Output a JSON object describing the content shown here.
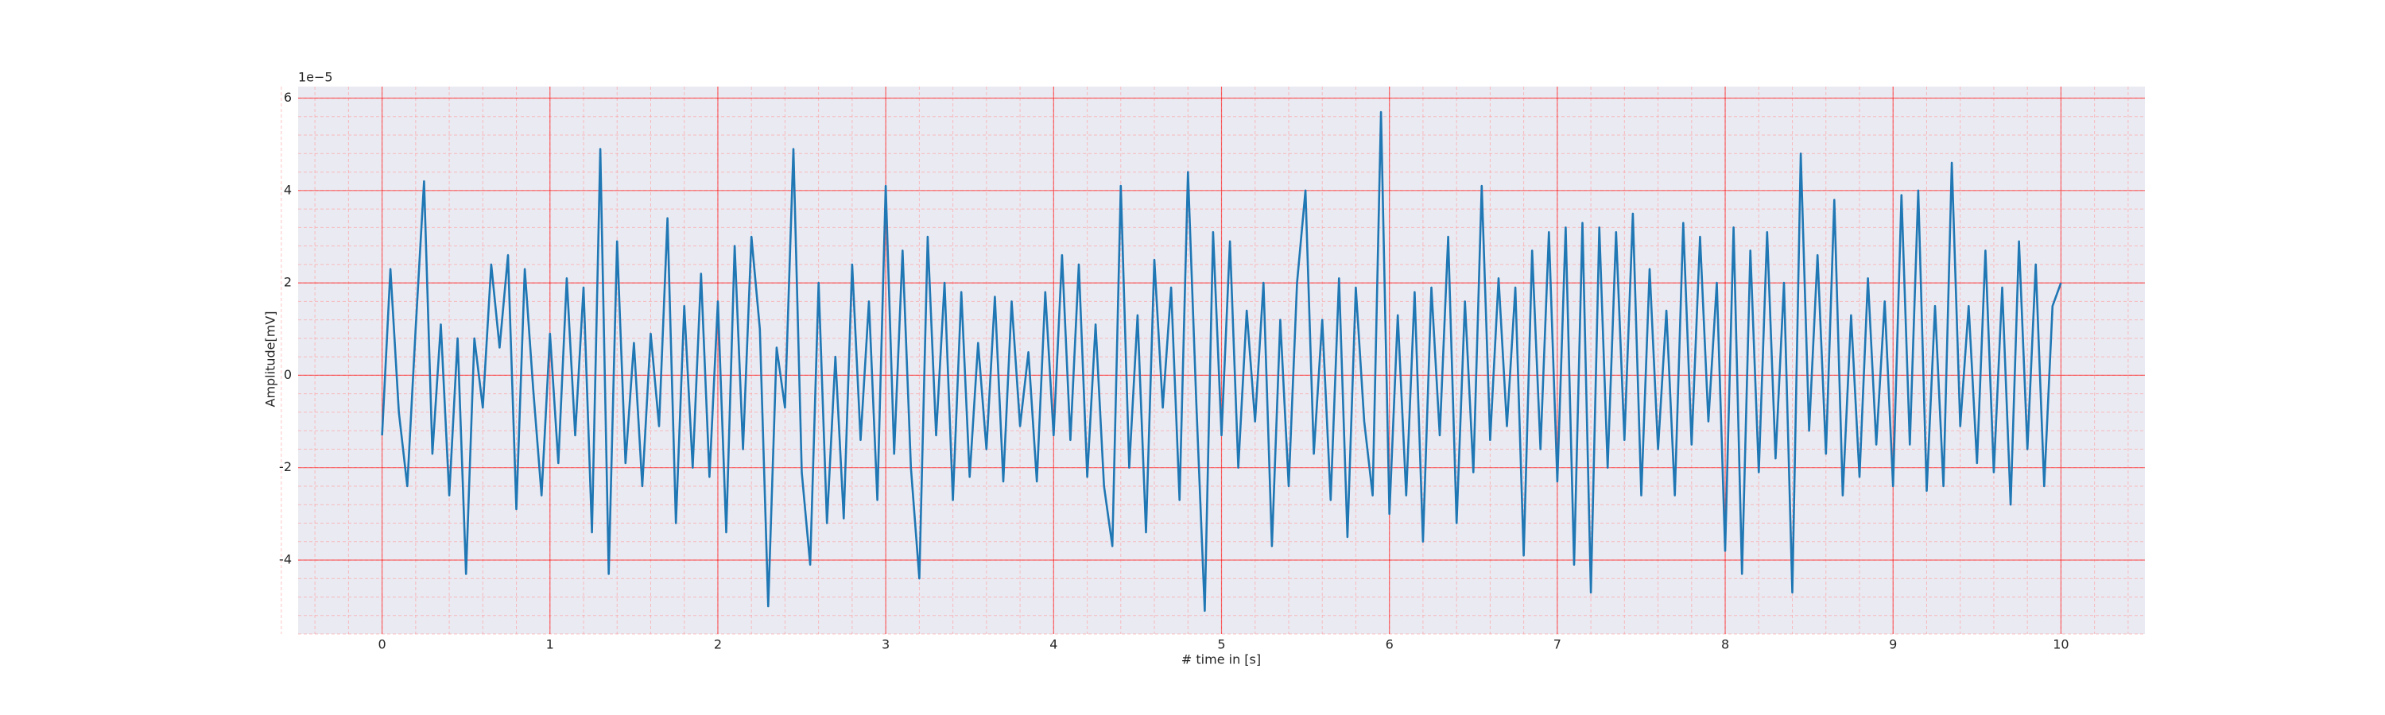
{
  "chart_data": {
    "type": "line",
    "xlabel": "# time in [s]",
    "ylabel": "Amplitude[mV]",
    "y_offset_text": "1e−5",
    "x": [
      0,
      0.05,
      0.1,
      0.15,
      0.2,
      0.25,
      0.3,
      0.35,
      0.4,
      0.45,
      0.5,
      0.55,
      0.6,
      0.65,
      0.7,
      0.75,
      0.8,
      0.85,
      0.9,
      0.95,
      1,
      1.05,
      1.1,
      1.15,
      1.2,
      1.25,
      1.3,
      1.35,
      1.4,
      1.45,
      1.5,
      1.55,
      1.6,
      1.65,
      1.7,
      1.75,
      1.8,
      1.85,
      1.9,
      1.95,
      2,
      2.05,
      2.1,
      2.15,
      2.2,
      2.25,
      2.3,
      2.35,
      2.4,
      2.45,
      2.5,
      2.55,
      2.6,
      2.65,
      2.7,
      2.75,
      2.8,
      2.85,
      2.9,
      2.95,
      3,
      3.05,
      3.1,
      3.15,
      3.2,
      3.25,
      3.3,
      3.35,
      3.4,
      3.45,
      3.5,
      3.55,
      3.6,
      3.65,
      3.7,
      3.75,
      3.8,
      3.85,
      3.9,
      3.95,
      4,
      4.05,
      4.1,
      4.15,
      4.2,
      4.25,
      4.3,
      4.35,
      4.4,
      4.45,
      4.5,
      4.55,
      4.6,
      4.65,
      4.7,
      4.75,
      4.8,
      4.85,
      4.9,
      4.95,
      5,
      5.05,
      5.1,
      5.15,
      5.2,
      5.25,
      5.3,
      5.35,
      5.4,
      5.45,
      5.5,
      5.55,
      5.6,
      5.65,
      5.7,
      5.75,
      5.8,
      5.85,
      5.9,
      5.95,
      6,
      6.05,
      6.1,
      6.15,
      6.2,
      6.25,
      6.3,
      6.35,
      6.4,
      6.45,
      6.5,
      6.55,
      6.6,
      6.65,
      6.7,
      6.75,
      6.8,
      6.85,
      6.9,
      6.95,
      7,
      7.05,
      7.1,
      7.15,
      7.2,
      7.25,
      7.3,
      7.35,
      7.4,
      7.45,
      7.5,
      7.55,
      7.6,
      7.65,
      7.7,
      7.75,
      7.8,
      7.85,
      7.9,
      7.95,
      8,
      8.05,
      8.1,
      8.15,
      8.2,
      8.25,
      8.3,
      8.35,
      8.4,
      8.45,
      8.5,
      8.55,
      8.6,
      8.65,
      8.7,
      8.75,
      8.8,
      8.85,
      8.9,
      8.95,
      9,
      9.05,
      9.1,
      9.15,
      9.2,
      9.25,
      9.3,
      9.35,
      9.4,
      9.45,
      9.5,
      9.55,
      9.6,
      9.65,
      9.7,
      9.75,
      9.8,
      9.85,
      9.9,
      9.95,
      10
    ],
    "series": [
      {
        "color": "#1f77b4",
        "values": [
          -1.3,
          2.3,
          -0.8,
          -2.4,
          1.0,
          4.2,
          -1.7,
          1.1,
          -2.6,
          0.8,
          -4.3,
          0.8,
          -0.7,
          2.4,
          0.6,
          2.6,
          -2.9,
          2.3,
          -0.3,
          -2.6,
          0.9,
          -1.9,
          2.1,
          -1.3,
          1.9,
          -3.4,
          4.9,
          -4.3,
          2.9,
          -1.9,
          0.7,
          -2.4,
          0.9,
          -1.1,
          3.4,
          -3.2,
          1.5,
          -2.0,
          2.2,
          -2.2,
          1.6,
          -3.4,
          2.8,
          -1.6,
          3.0,
          1.0,
          -5.0,
          0.6,
          -0.7,
          4.9,
          -2.1,
          -4.1,
          2.0,
          -3.2,
          0.4,
          -3.1,
          2.4,
          -1.4,
          1.6,
          -2.7,
          4.1,
          -1.7,
          2.7,
          -2.0,
          -4.4,
          3.0,
          -1.3,
          2.0,
          -2.7,
          1.8,
          -2.2,
          0.7,
          -1.6,
          1.7,
          -2.3,
          1.6,
          -1.1,
          0.5,
          -2.3,
          1.8,
          -1.3,
          2.6,
          -1.4,
          2.4,
          -2.2,
          1.1,
          -2.4,
          -3.7,
          4.1,
          -2.0,
          1.3,
          -3.4,
          2.5,
          -0.7,
          1.9,
          -2.7,
          4.4,
          -0.6,
          -5.1,
          3.1,
          -1.3,
          2.9,
          -2.0,
          1.4,
          -1.0,
          2.0,
          -3.7,
          1.2,
          -2.4,
          2.0,
          4.0,
          -1.7,
          1.2,
          -2.7,
          2.1,
          -3.5,
          1.9,
          -1.0,
          -2.6,
          5.7,
          -3.0,
          1.3,
          -2.6,
          1.8,
          -3.6,
          1.9,
          -1.3,
          3.0,
          -3.2,
          1.6,
          -2.1,
          4.1,
          -1.4,
          2.1,
          -1.1,
          1.9,
          -3.9,
          2.7,
          -1.6,
          3.1,
          -2.3,
          3.2,
          -4.1,
          3.3,
          -4.7,
          3.2,
          -2.0,
          3.1,
          -1.4,
          3.5,
          -2.6,
          2.3,
          -1.6,
          1.4,
          -2.6,
          3.3,
          -1.5,
          3.0,
          -1.0,
          2.0,
          -3.8,
          3.2,
          -4.3,
          2.7,
          -2.1,
          3.1,
          -1.8,
          2.0,
          -4.7,
          4.8,
          -1.2,
          2.6,
          -1.7,
          3.8,
          -2.6,
          1.3,
          -2.2,
          2.1,
          -1.5,
          1.6,
          -2.4,
          3.9,
          -1.5,
          4.0,
          -2.5,
          1.5,
          -2.4,
          4.6,
          -1.1,
          1.5,
          -1.9,
          2.7,
          -2.1,
          1.9,
          -2.8,
          2.9,
          -1.6,
          2.4,
          -2.4,
          1.5,
          2.0
        ]
      }
    ],
    "xlim": [
      -0.5,
      10.5
    ],
    "ylim": [
      -5.6,
      6.25
    ],
    "xticks": [
      0,
      1,
      2,
      3,
      4,
      5,
      6,
      7,
      8,
      9,
      10
    ],
    "yticks": [
      -4,
      -2,
      0,
      2,
      4,
      6
    ],
    "grid": true,
    "grid_color": "#ff0000",
    "minor_grid": true,
    "minor_grid_color": "#ff9999",
    "minor_divisions": 5,
    "background": "#eaeaf2"
  }
}
